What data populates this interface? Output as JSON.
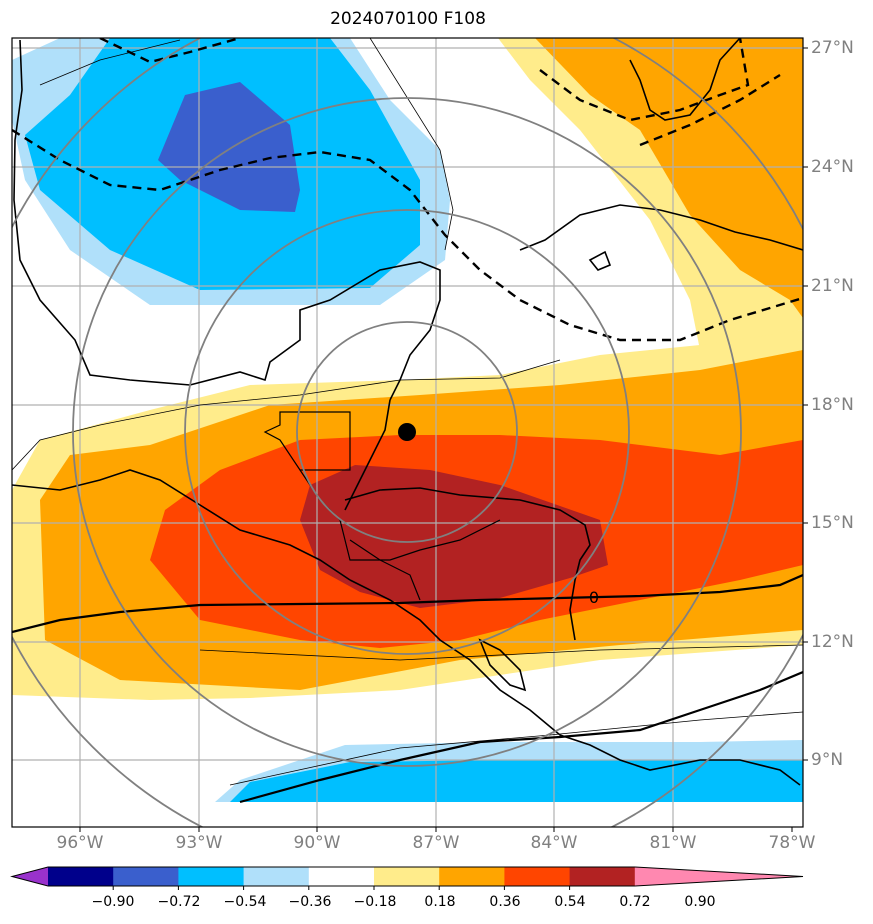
{
  "title": "2024070100 F108",
  "lat_labels": [
    "27°N",
    "24°N",
    "21°N",
    "18°N",
    "15°N",
    "12°N",
    "9°N"
  ],
  "lon_labels": [
    "96°W",
    "93°W",
    "90°W",
    "87°W",
    "84°W",
    "81°W",
    "78°W"
  ],
  "contour_label": "0",
  "colorbar": {
    "levels": [
      "−0.90",
      "−0.72",
      "−0.54",
      "−0.36",
      "−0.18",
      "0.18",
      "0.36",
      "0.54",
      "0.72",
      "0.90"
    ],
    "colors": [
      "#9932cc",
      "#00008b",
      "#3a5fcd",
      "#00bfff",
      "#b0e0fa",
      "#ffffff",
      "#ffec8b",
      "#ffa500",
      "#ff4500",
      "#b22222",
      "#ff88b0"
    ]
  },
  "map": {
    "extent": {
      "lon_min": -97.7,
      "lon_max": -77.8,
      "lat_min": 7.5,
      "lat_max": 27.3
    },
    "marker": {
      "lon": -87.7,
      "lat": 17.3,
      "label": ""
    },
    "range_rings": "concentric circles centered near the marker"
  }
}
